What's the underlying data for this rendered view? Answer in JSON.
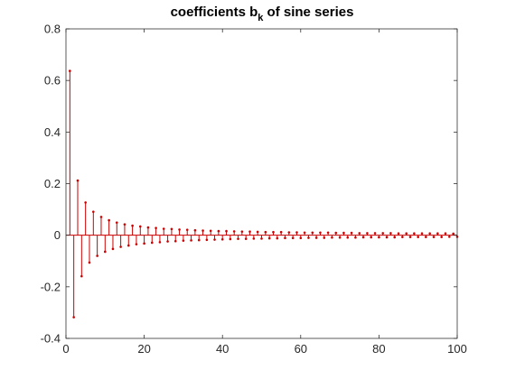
{
  "chart_data": {
    "type": "stem",
    "title_main": "coefficients b",
    "title_subscript": "k",
    "title_tail": " of sine series",
    "xlabel": "",
    "ylabel": "",
    "xlim": [
      0,
      100
    ],
    "ylim": [
      -0.4,
      0.8
    ],
    "xticks": [
      "0",
      "20",
      "40",
      "60",
      "80",
      "100"
    ],
    "yticks": [
      "-0.4",
      "-0.2",
      "0",
      "0.2",
      "0.4",
      "0.6",
      "0.8"
    ],
    "grid": false,
    "color": "#cc0000",
    "x": [
      1,
      2,
      3,
      4,
      5,
      6,
      7,
      8,
      9,
      10,
      11,
      12,
      13,
      14,
      15,
      16,
      17,
      18,
      19,
      20,
      21,
      22,
      23,
      24,
      25,
      26,
      27,
      28,
      29,
      30,
      31,
      32,
      33,
      34,
      35,
      36,
      37,
      38,
      39,
      40,
      41,
      42,
      43,
      44,
      45,
      46,
      47,
      48,
      49,
      50,
      51,
      52,
      53,
      54,
      55,
      56,
      57,
      58,
      59,
      60,
      61,
      62,
      63,
      64,
      65,
      66,
      67,
      68,
      69,
      70,
      71,
      72,
      73,
      74,
      75,
      76,
      77,
      78,
      79,
      80,
      81,
      82,
      83,
      84,
      85,
      86,
      87,
      88,
      89,
      90,
      91,
      92,
      93,
      94,
      95,
      96,
      97,
      98,
      99,
      100
    ],
    "values": [
      0.637,
      -0.318,
      0.212,
      -0.159,
      0.127,
      -0.106,
      0.091,
      -0.08,
      0.071,
      -0.064,
      0.058,
      -0.053,
      0.049,
      -0.045,
      0.042,
      -0.04,
      0.037,
      -0.035,
      0.034,
      -0.032,
      0.03,
      -0.029,
      0.028,
      -0.027,
      0.025,
      -0.024,
      0.024,
      -0.023,
      0.022,
      -0.021,
      0.021,
      -0.02,
      0.019,
      -0.019,
      0.018,
      -0.018,
      0.017,
      -0.017,
      0.016,
      -0.016,
      0.016,
      -0.015,
      0.015,
      -0.014,
      0.014,
      -0.014,
      0.014,
      -0.013,
      0.013,
      -0.013,
      0.012,
      -0.012,
      0.012,
      -0.012,
      0.012,
      -0.011,
      0.011,
      -0.011,
      0.011,
      -0.011,
      0.01,
      -0.01,
      0.01,
      -0.01,
      0.01,
      -0.01,
      0.01,
      -0.009,
      0.009,
      -0.009,
      0.009,
      -0.009,
      0.009,
      -0.009,
      0.008,
      -0.008,
      0.008,
      -0.008,
      0.008,
      -0.008,
      0.008,
      -0.008,
      0.008,
      -0.008,
      0.007,
      -0.007,
      0.007,
      -0.007,
      0.007,
      -0.007,
      0.007,
      -0.007,
      0.007,
      -0.007,
      0.007,
      -0.007,
      0.007,
      -0.006,
      0.006,
      -0.006
    ]
  }
}
